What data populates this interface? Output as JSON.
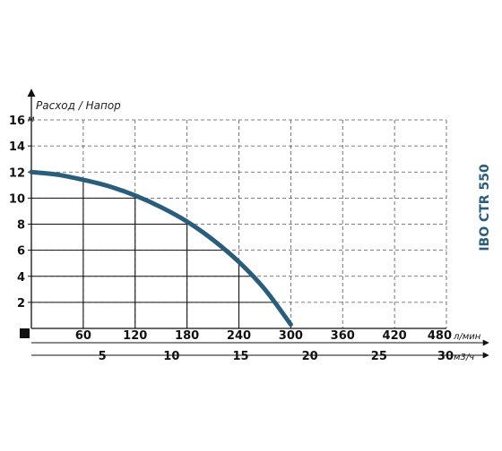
{
  "chart_data": {
    "type": "line",
    "title": "Расход / Напор",
    "model": "IBO CTR 550",
    "y_axis": {
      "unit": "м",
      "ticks": [
        2,
        4,
        6,
        8,
        10,
        12,
        14,
        16
      ],
      "ylim": [
        0,
        16
      ],
      "grid": "dashed"
    },
    "x_axis": {
      "unit": "л/мин",
      "ticks": [
        60,
        120,
        180,
        240,
        300,
        360,
        420,
        480
      ],
      "xlim": [
        0,
        480
      ],
      "grid": "dashed"
    },
    "x2_axis": {
      "unit": "м3/ч",
      "ticks": [
        5,
        10,
        15,
        20,
        25,
        30
      ],
      "xlim": [
        0,
        30
      ]
    },
    "series": [
      {
        "x": [
          0,
          30,
          60,
          90,
          120,
          150,
          180,
          210,
          240,
          270,
          300
        ],
        "y": [
          12.0,
          11.8,
          11.4,
          10.9,
          10.2,
          9.3,
          8.2,
          6.8,
          5.1,
          3.0,
          0.3
        ],
        "color": "#2a5d7c"
      }
    ],
    "accent_color": "#2a5d7c"
  }
}
